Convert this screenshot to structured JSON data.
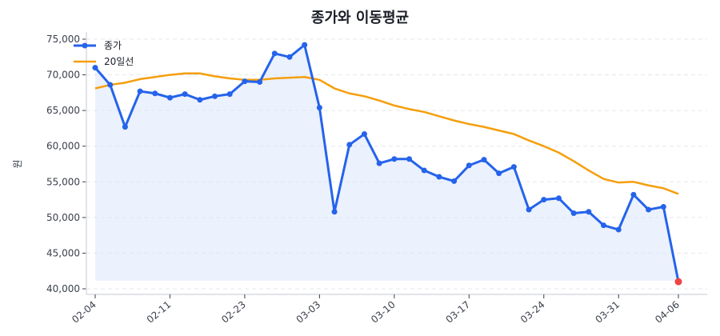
{
  "title": "종가와 이동평균",
  "chart_data": {
    "type": "line",
    "title": "종가와 이동평균",
    "xlabel": "",
    "ylabel": "원",
    "ylim": [
      40000,
      75000
    ],
    "yticks": [
      40000,
      45000,
      50000,
      55000,
      60000,
      65000,
      70000,
      75000
    ],
    "ytick_labels": [
      "40,000",
      "45,000",
      "50,000",
      "55,000",
      "60,000",
      "65,000",
      "70,000",
      "75,000"
    ],
    "xtick_labels": [
      "02-04",
      "02-11",
      "02-23",
      "03-03",
      "03-10",
      "03-17",
      "03-24",
      "03-31",
      "04-06"
    ],
    "xtick_indices": [
      0,
      5,
      10,
      15,
      20,
      25,
      30,
      35,
      39
    ],
    "grid": true,
    "legend_position": "upper left",
    "n_points": 40,
    "series": [
      {
        "name": "종가",
        "color": "#2563eb",
        "marker": "circle",
        "fill": true,
        "values": [
          71000,
          68600,
          62700,
          67700,
          67400,
          66800,
          67300,
          66500,
          67000,
          67300,
          69100,
          69000,
          73000,
          72500,
          74200,
          65400,
          50800,
          60200,
          61700,
          57600,
          58200,
          58200,
          56600,
          55700,
          55100,
          57300,
          58100,
          56200,
          57100,
          51100,
          52500,
          52700,
          50600,
          50800,
          48900,
          48300,
          53200,
          51100,
          51500,
          41000
        ]
      },
      {
        "name": "20일선",
        "color": "#f59e0b",
        "marker": "none",
        "values": [
          68100,
          68600,
          68900,
          69400,
          69700,
          70000,
          70200,
          70200,
          69800,
          69500,
          69300,
          69300,
          69500,
          69600,
          69700,
          69300,
          68100,
          67400,
          67000,
          66400,
          65700,
          65200,
          64800,
          64200,
          63600,
          63100,
          62700,
          62200,
          61700,
          60800,
          60000,
          59100,
          57900,
          56600,
          55400,
          54900,
          55000,
          54500,
          54100,
          53300
        ]
      }
    ],
    "highlight_last_point_color": "#ef4444"
  }
}
